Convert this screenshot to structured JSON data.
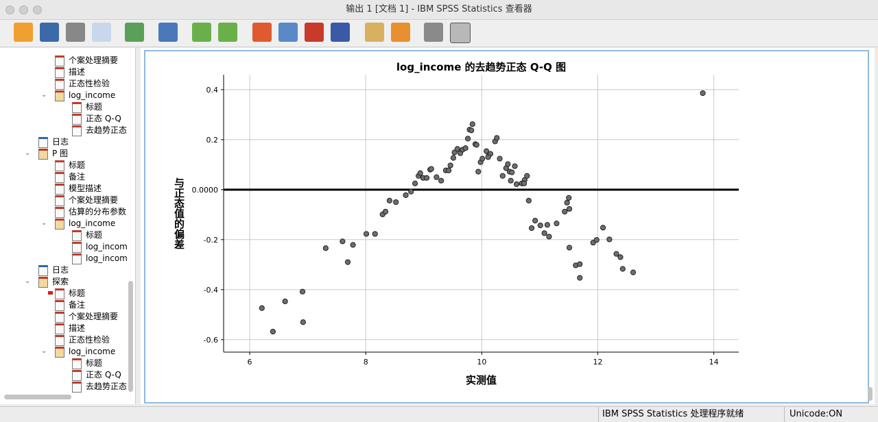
{
  "window": {
    "title": "输出 1 [文档 1] - IBM SPSS Statistics 查看器"
  },
  "tree": [
    {
      "label": "个案处理摘要",
      "level": 3
    },
    {
      "label": "描述",
      "level": 3
    },
    {
      "label": "正态性检验",
      "level": 3
    },
    {
      "label": "log_income",
      "level": 3,
      "toggle": true
    },
    {
      "label": "标题",
      "level": 4
    },
    {
      "label": "正态 Q-Q",
      "level": 4
    },
    {
      "label": "去趋势正态",
      "level": 4
    },
    {
      "label": "日志",
      "level": 2
    },
    {
      "label": "P 图",
      "level": 2,
      "toggle": true
    },
    {
      "label": "标题",
      "level": 3
    },
    {
      "label": "备注",
      "level": 3
    },
    {
      "label": "模型描述",
      "level": 3
    },
    {
      "label": "个案处理摘要",
      "level": 3
    },
    {
      "label": "估算的分布参数",
      "level": 3
    },
    {
      "label": "log_income",
      "level": 3,
      "toggle": true
    },
    {
      "label": "标题",
      "level": 4
    },
    {
      "label": "log_incom",
      "level": 4
    },
    {
      "label": "log_incom",
      "level": 4
    },
    {
      "label": "日志",
      "level": 2
    },
    {
      "label": "探索",
      "level": 2,
      "toggle": true
    },
    {
      "label": "标题",
      "level": 3,
      "current": true
    },
    {
      "label": "备注",
      "level": 3
    },
    {
      "label": "个案处理摘要",
      "level": 3
    },
    {
      "label": "描述",
      "level": 3
    },
    {
      "label": "正态性检验",
      "level": 3
    },
    {
      "label": "log_income",
      "level": 3,
      "toggle": true
    },
    {
      "label": "标题",
      "level": 4
    },
    {
      "label": "正态 Q-Q",
      "level": 4
    },
    {
      "label": "去趋势正态",
      "level": 4
    }
  ],
  "chart_data": {
    "type": "scatter",
    "title": "log_income 的去趋势正态 Q-Q 图",
    "x_label": "实测值",
    "y_label": "与正态值的偏差",
    "xlim": [
      5.55,
      14.43
    ],
    "ylim": [
      -0.65,
      0.46
    ],
    "xticks": [
      6,
      8,
      10,
      12,
      14
    ],
    "yticks": [
      0.4,
      0.2,
      {
        "value": 0,
        "label": "0.0000"
      },
      -0.2,
      -0.4,
      -0.6
    ],
    "grid": true,
    "hline": 0,
    "x": [
      6.21,
      6.4,
      6.61,
      6.91,
      6.92,
      7.31,
      7.6,
      7.69,
      7.78,
      8.01,
      8.16,
      8.29,
      8.34,
      8.41,
      8.52,
      8.69,
      8.78,
      8.85,
      8.91,
      8.94,
      8.99,
      9.05,
      9.11,
      9.13,
      9.22,
      9.3,
      9.38,
      9.43,
      9.46,
      9.51,
      9.53,
      9.58,
      9.63,
      9.67,
      9.72,
      9.76,
      9.79,
      9.82,
      9.84,
      9.89,
      9.91,
      9.94,
      9.98,
      10.01,
      10.08,
      10.12,
      10.15,
      10.11,
      10.23,
      10.26,
      10.31,
      10.36,
      10.42,
      10.45,
      10.48,
      10.52,
      10.5,
      10.57,
      10.6,
      10.69,
      10.74,
      10.78,
      10.73,
      10.81,
      10.86,
      10.92,
      11.01,
      11.08,
      11.13,
      11.16,
      11.29,
      11.43,
      11.47,
      11.51,
      11.5,
      11.51,
      11.62,
      11.69,
      11.69,
      11.92,
      11.98,
      12.09,
      12.2,
      12.32,
      12.39,
      12.43,
      12.61,
      13.81
    ],
    "series": [
      {
        "color": "#6e6e6e",
        "values": [
          -0.474,
          -0.568,
          -0.447,
          -0.408,
          -0.53,
          -0.234,
          -0.207,
          -0.29,
          -0.221,
          -0.177,
          -0.177,
          -0.099,
          -0.088,
          -0.044,
          -0.05,
          -0.022,
          -0.008,
          0.025,
          0.055,
          0.066,
          0.047,
          0.047,
          0.08,
          0.083,
          0.05,
          0.036,
          0.077,
          0.077,
          0.097,
          0.127,
          0.149,
          0.163,
          0.146,
          0.16,
          0.166,
          0.204,
          0.24,
          0.237,
          0.262,
          0.182,
          0.179,
          0.072,
          0.11,
          0.124,
          0.154,
          0.138,
          0.143,
          0.13,
          0.193,
          0.207,
          0.124,
          0.055,
          0.086,
          0.102,
          0.072,
          0.069,
          0.036,
          0.094,
          0.022,
          0.025,
          0.039,
          0.055,
          0.025,
          -0.044,
          -0.154,
          -0.124,
          -0.143,
          -0.174,
          -0.141,
          -0.188,
          -0.135,
          -0.088,
          -0.052,
          -0.077,
          -0.033,
          -0.232,
          -0.303,
          -0.298,
          -0.353,
          -0.212,
          -0.201,
          -0.152,
          -0.199,
          -0.257,
          -0.27,
          -0.317,
          -0.331,
          0.386
        ]
      }
    ]
  },
  "status": {
    "message": "IBM SPSS Statistics 处理程序就绪",
    "encoding": "Unicode:ON"
  }
}
